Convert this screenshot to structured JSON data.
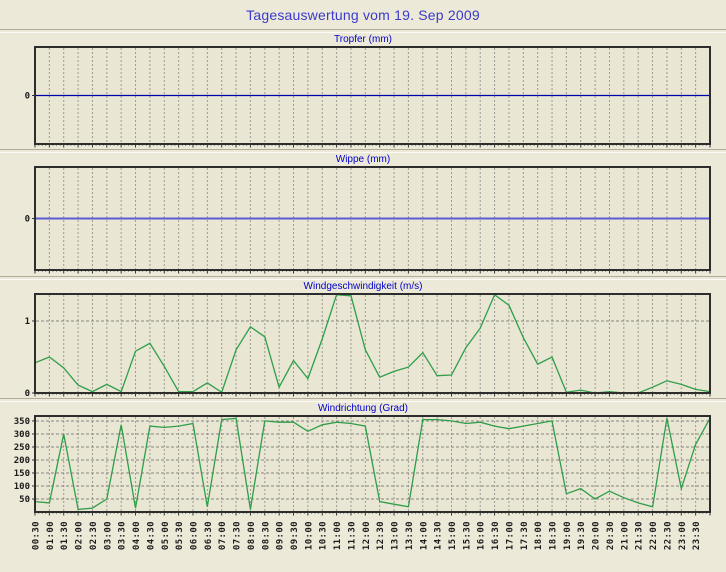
{
  "page_title": "Tagesauswertung vom 19. Sep 2009",
  "chart_data": {
    "type": "line",
    "x_axis_note": "time of day, 30-minute steps, labels rotated 90deg",
    "categories": [
      "00:30",
      "01:00",
      "01:30",
      "02:00",
      "02:30",
      "03:00",
      "03:30",
      "04:00",
      "04:30",
      "05:00",
      "05:30",
      "06:00",
      "06:30",
      "07:00",
      "07:30",
      "08:00",
      "08:30",
      "09:00",
      "09:30",
      "10:00",
      "10:30",
      "11:00",
      "11:30",
      "12:00",
      "12:30",
      "13:00",
      "13:30",
      "14:00",
      "14:30",
      "15:00",
      "15:30",
      "16:00",
      "16:30",
      "17:00",
      "17:30",
      "18:00",
      "18:30",
      "19:00",
      "19:30",
      "20:00",
      "20:30",
      "21:00",
      "21:30",
      "22:00",
      "22:30",
      "23:00",
      "23:30",
      ""
    ],
    "grid_color_vertical": "#9b9b93",
    "grid_color_horizontal": "#87877f",
    "plot_bg": "#e9e6d3",
    "panels": [
      {
        "title": "Tropfer (mm)",
        "color": "#0000aa",
        "line_width": 1.2,
        "ylim": [
          -1,
          1
        ],
        "yticks": [
          {
            "value": 0,
            "label": "0"
          }
        ],
        "grid": [],
        "values": [
          0,
          0,
          0,
          0,
          0,
          0,
          0,
          0,
          0,
          0,
          0,
          0,
          0,
          0,
          0,
          0,
          0,
          0,
          0,
          0,
          0,
          0,
          0,
          0,
          0,
          0,
          0,
          0,
          0,
          0,
          0,
          0,
          0,
          0,
          0,
          0,
          0,
          0,
          0,
          0,
          0,
          0,
          0,
          0,
          0,
          0,
          0,
          0
        ]
      },
      {
        "title": "Wippe (mm)",
        "color": "#5c5cd6",
        "line_width": 2,
        "ylim": [
          -1,
          1
        ],
        "yticks": [
          {
            "value": 0,
            "label": "0"
          }
        ],
        "grid": [],
        "values": [
          0,
          0,
          0,
          0,
          0,
          0,
          0,
          0,
          0,
          0,
          0,
          0,
          0,
          0,
          0,
          0,
          0,
          0,
          0,
          0,
          0,
          0,
          0,
          0,
          0,
          0,
          0,
          0,
          0,
          0,
          0,
          0,
          0,
          0,
          0,
          0,
          0,
          0,
          0,
          0,
          0,
          0,
          0,
          0,
          0,
          0,
          0,
          0
        ]
      },
      {
        "title": "Windgeschwindigkeit (m/s)",
        "color": "#2e9e4a",
        "line_width": 1.3,
        "ylim": [
          0,
          1.375
        ],
        "yticks": [
          {
            "value": 1,
            "label": "1"
          },
          {
            "value": 0,
            "label": "0"
          }
        ],
        "grid": [
          1
        ],
        "values": [
          0.42,
          0.5,
          0.35,
          0.11,
          0.02,
          0.12,
          0.02,
          0.58,
          0.69,
          0.37,
          0.02,
          0.02,
          0.14,
          0.01,
          0.6,
          0.92,
          0.78,
          0.08,
          0.45,
          0.2,
          0.75,
          1.4,
          1.35,
          0.6,
          0.22,
          0.3,
          0.36,
          0.56,
          0.24,
          0.25,
          0.63,
          0.9,
          1.4,
          1.22,
          0.77,
          0.4,
          0.5,
          0.01,
          0.04,
          0,
          0.02,
          0,
          0,
          0.08,
          0.17,
          0.12,
          0.05,
          0.02
        ]
      },
      {
        "title": "Windrichtung (Grad)",
        "color": "#2e9e4a",
        "line_width": 1.3,
        "ylim": [
          0,
          369
        ],
        "yticks": [
          {
            "value": 350,
            "label": "350"
          },
          {
            "value": 300,
            "label": "300"
          },
          {
            "value": 250,
            "label": "250"
          },
          {
            "value": 200,
            "label": "200"
          },
          {
            "value": 150,
            "label": "150"
          },
          {
            "value": 100,
            "label": "100"
          },
          {
            "value": 50,
            "label": "50"
          }
        ],
        "grid": [
          350,
          300,
          250,
          200,
          150,
          100,
          50
        ],
        "values": [
          40,
          35,
          300,
          10,
          15,
          50,
          335,
          15,
          330,
          325,
          330,
          340,
          20,
          355,
          360,
          10,
          350,
          345,
          345,
          310,
          335,
          345,
          340,
          330,
          40,
          30,
          20,
          355,
          355,
          350,
          340,
          345,
          330,
          320,
          330,
          340,
          350,
          70,
          90,
          50,
          80,
          55,
          35,
          20,
          360,
          90,
          260,
          360
        ]
      }
    ]
  }
}
